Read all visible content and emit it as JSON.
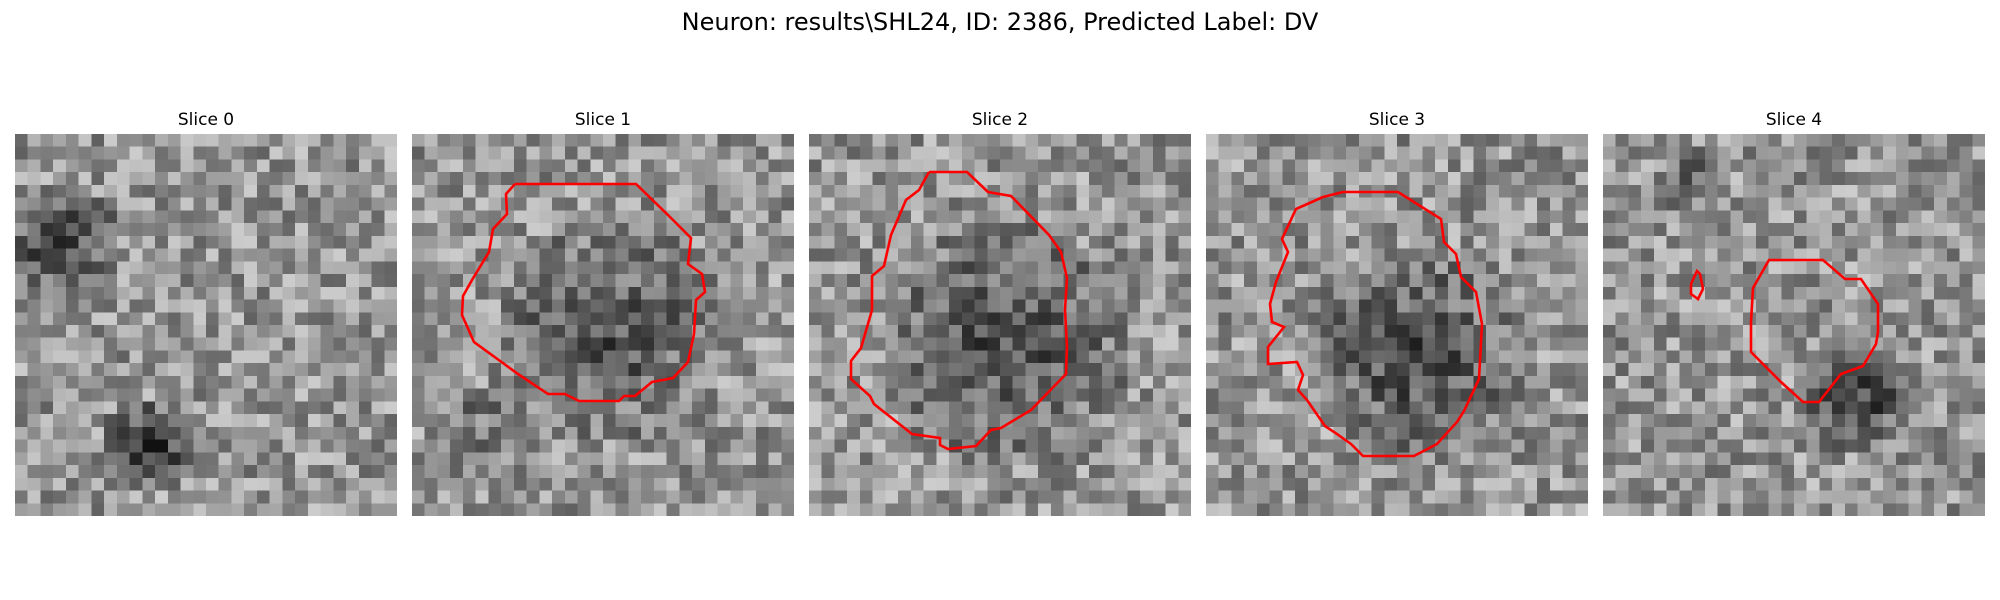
{
  "figure": {
    "title": "Neuron: results\\SHL24, ID: 2386, Predicted Label: DV"
  },
  "colors": {
    "contour": "#ff0000",
    "background": "#ffffff"
  },
  "panels": [
    {
      "title": "Slice 0"
    },
    {
      "title": "Slice 1"
    },
    {
      "title": "Slice 2"
    },
    {
      "title": "Slice 3"
    },
    {
      "title": "Slice 4"
    }
  ]
}
